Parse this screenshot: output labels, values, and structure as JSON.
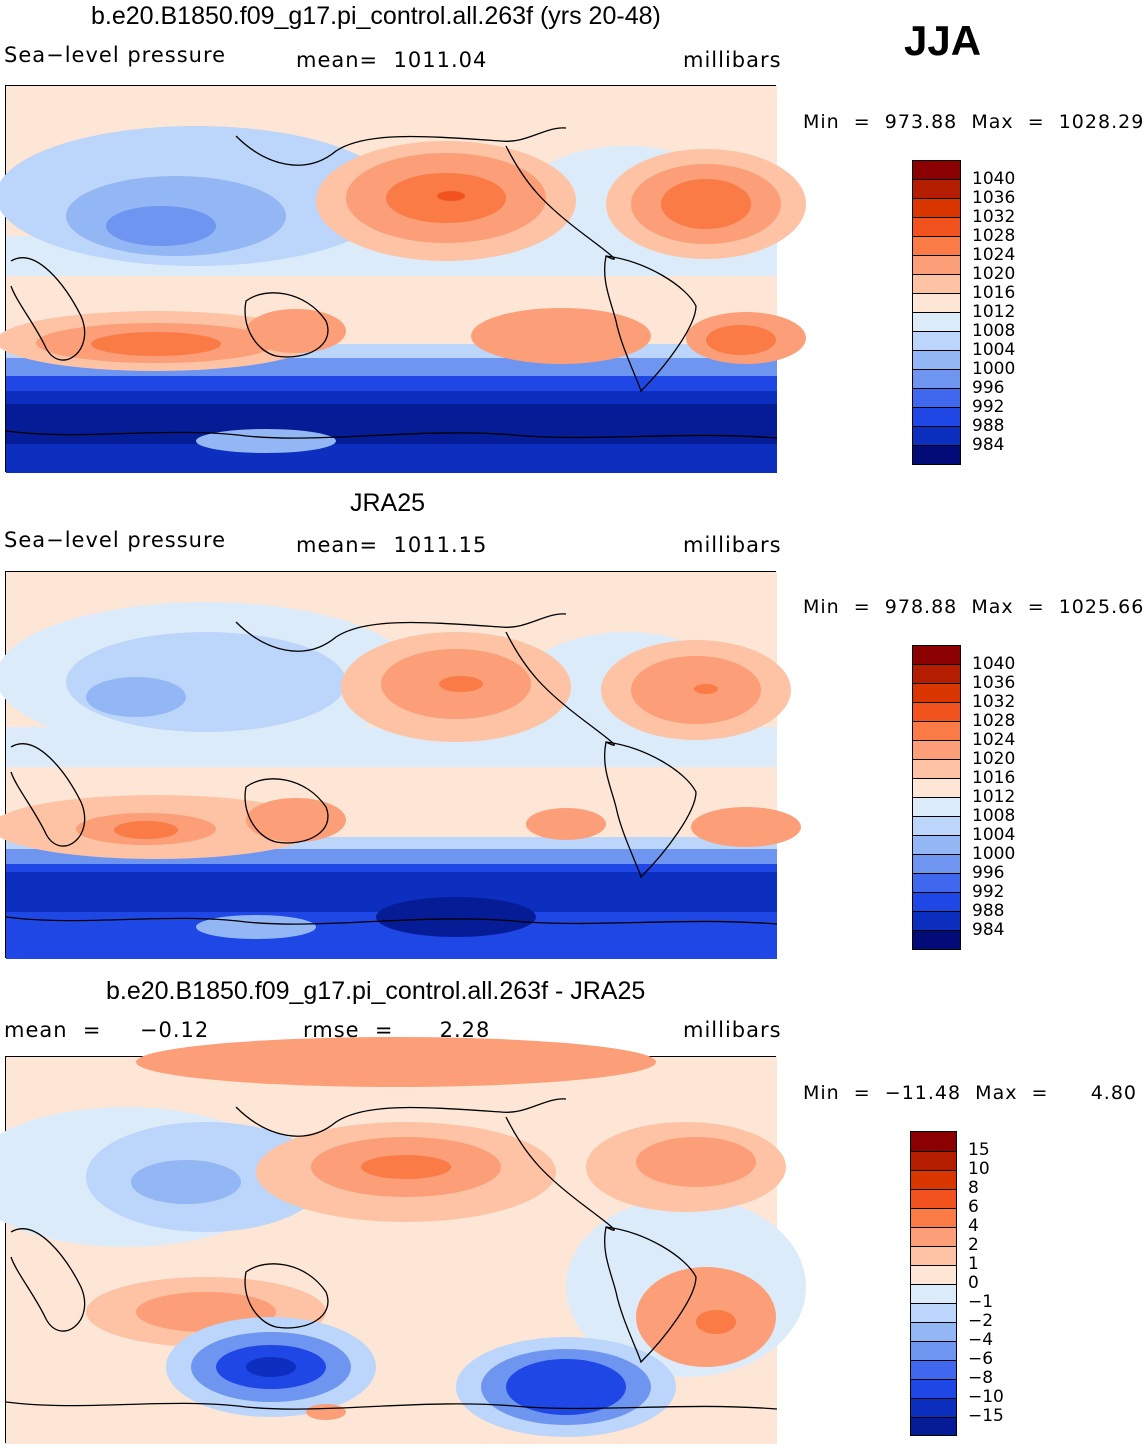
{
  "figure": {
    "season": "JJA",
    "units": "millibars",
    "variable_label": "Sea−level pressure"
  },
  "panels": [
    {
      "title": "b.e20.B1850.f09_g17.pi_control.all.263f (yrs 20-48)",
      "left_label": "Sea−level pressure",
      "center_label": "mean=  1011.04",
      "right_label": "millibars",
      "minmax_label": "Min  =  973.88  Max  =  1028.29"
    },
    {
      "title": "JRA25",
      "left_label": "Sea−level pressure",
      "center_label": "mean=  1011.15",
      "right_label": "millibars",
      "minmax_label": "Min  =  978.88  Max  =  1025.66"
    },
    {
      "title": "b.e20.B1850.f09_g17.pi_control.all.263f - JRA25",
      "left_label": "mean  =     −0.12",
      "center_label": "rmse  =      2.28",
      "right_label": "millibars",
      "minmax_label": "Min  =  −11.48  Max  =      4.80"
    }
  ],
  "colorbars": {
    "pressure": {
      "levels": [
        "1040",
        "1036",
        "1032",
        "1028",
        "1024",
        "1020",
        "1016",
        "1012",
        "1008",
        "1004",
        "1000",
        "996",
        "992",
        "988",
        "984"
      ],
      "colors": [
        "#8b0000",
        "#b51d00",
        "#d93600",
        "#f2531e",
        "#fa7b45",
        "#fc9e78",
        "#fdc3a4",
        "#fde6d5",
        "#dcebfa",
        "#bcd5fa",
        "#93b6f5",
        "#6e95f0",
        "#3f68ee",
        "#1f47e6",
        "#0d2fbf",
        "#051c96",
        "#020b78"
      ]
    },
    "difference": {
      "levels": [
        "15",
        "10",
        "8",
        "6",
        "4",
        "2",
        "1",
        "0",
        "−1",
        "−2",
        "−4",
        "−6",
        "−8",
        "−10",
        "−15"
      ],
      "colors": [
        "#8b0000",
        "#b51d00",
        "#d93600",
        "#f2531e",
        "#fa7b45",
        "#fc9e78",
        "#fdc3a4",
        "#fde6d5",
        "#dcebfa",
        "#bcd5fa",
        "#93b6f5",
        "#6e95f0",
        "#3f68ee",
        "#1f47e6",
        "#0d2fbf",
        "#051c96"
      ]
    }
  },
  "chart_data": [
    {
      "type": "heatmap",
      "title": "b.e20.B1850.f09_g17.pi_control.all.263f (yrs 20-48)",
      "variable": "Sea-level pressure",
      "units": "millibars",
      "season": "JJA",
      "mean": 1011.04,
      "min": 973.88,
      "max": 1028.29,
      "contour_levels": [
        984,
        988,
        992,
        996,
        1000,
        1004,
        1008,
        1012,
        1016,
        1020,
        1024,
        1028,
        1032,
        1036,
        1040
      ]
    },
    {
      "type": "heatmap",
      "title": "JRA25",
      "variable": "Sea-level pressure",
      "units": "millibars",
      "season": "JJA",
      "mean": 1011.15,
      "min": 978.88,
      "max": 1025.66,
      "contour_levels": [
        984,
        988,
        992,
        996,
        1000,
        1004,
        1008,
        1012,
        1016,
        1020,
        1024,
        1028,
        1032,
        1036,
        1040
      ]
    },
    {
      "type": "heatmap",
      "title": "b.e20.B1850.f09_g17.pi_control.all.263f - JRA25",
      "variable": "Sea-level pressure difference",
      "units": "millibars",
      "season": "JJA",
      "mean": -0.12,
      "rmse": 2.28,
      "min": -11.48,
      "max": 4.8,
      "contour_levels": [
        -15,
        -10,
        -8,
        -6,
        -4,
        -2,
        -1,
        0,
        1,
        2,
        4,
        6,
        8,
        10,
        15
      ]
    }
  ]
}
